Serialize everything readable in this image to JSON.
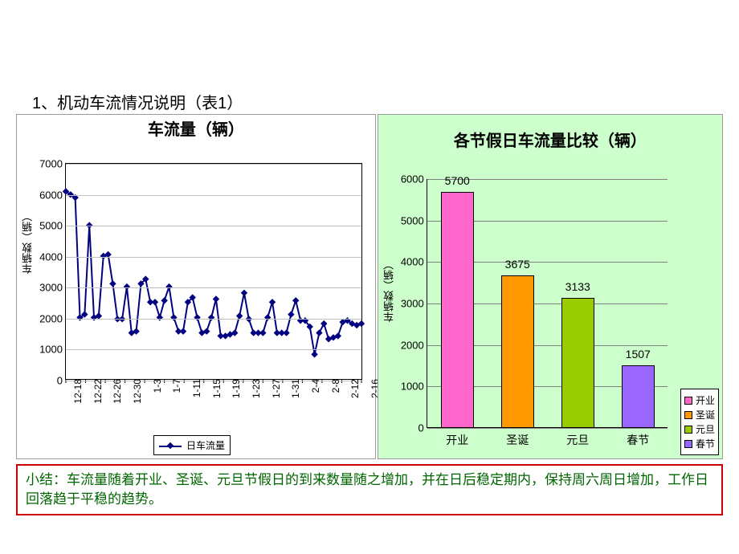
{
  "page": {
    "title": "1、机动车流情况说明（表1）"
  },
  "line_chart": {
    "type": "line",
    "title": "车流量（辆）",
    "y_label": "车辆数（辆）",
    "legend_label": "日车流量",
    "background_color": "#ffffff",
    "grid_color": "#c0c0c0",
    "line_color": "#000080",
    "marker_color": "#000080",
    "marker_shape": "diamond",
    "line_width": 2,
    "marker_size": 6,
    "title_fontsize": 20,
    "label_fontsize": 13,
    "ylim": [
      0,
      7000
    ],
    "ytick_step": 1000,
    "y_ticks": [
      0,
      1000,
      2000,
      3000,
      4000,
      5000,
      6000,
      7000
    ],
    "x_labels": [
      "12-18",
      "12-22",
      "12-26",
      "12-30",
      "1-3",
      "1-7",
      "1-11",
      "1-15",
      "1-19",
      "1-23",
      "1-27",
      "1-31",
      "2-4",
      "2-8",
      "2-12",
      "2-16"
    ],
    "values": [
      6100,
      6000,
      5900,
      2000,
      2100,
      5000,
      2000,
      2050,
      4000,
      4050,
      3100,
      1950,
      1950,
      3000,
      1500,
      1550,
      3100,
      3250,
      2500,
      2500,
      2000,
      2550,
      3000,
      2000,
      1550,
      1550,
      2500,
      2650,
      2000,
      1500,
      1550,
      2000,
      2600,
      1400,
      1400,
      1450,
      1500,
      2050,
      2800,
      1950,
      1500,
      1500,
      1500,
      2000,
      2500,
      1500,
      1500,
      1500,
      2100,
      2550,
      1900,
      1900,
      1700,
      800,
      1500,
      1800,
      1300,
      1350,
      1400,
      1850,
      1900,
      1800,
      1750,
      1800
    ]
  },
  "bar_chart": {
    "type": "bar",
    "title": "各节假日车流量比较（辆）",
    "y_label": "车辆数（辆）",
    "background_color": "#ccffcc",
    "plot_background_color": "#ccffcc",
    "grid_color": "#808080",
    "title_fontsize": 20,
    "label_fontsize": 13,
    "ylim": [
      0,
      6000
    ],
    "ytick_step": 1000,
    "y_ticks": [
      0,
      1000,
      2000,
      3000,
      4000,
      5000,
      6000
    ],
    "bar_width": 0.55,
    "categories": [
      "开业",
      "圣诞",
      "元旦",
      "春节"
    ],
    "values": [
      5700,
      3675,
      3133,
      1507
    ],
    "bar_colors": [
      "#ff66cc",
      "#ff9900",
      "#99cc00",
      "#9966ff"
    ],
    "legend_labels": [
      "开业",
      "圣诞",
      "元旦",
      "春节"
    ]
  },
  "summary": {
    "label": "小结：",
    "text": "车流量随着开业、圣诞、元旦节假日的到来数量随之增加，并在日后稳定期内，保持周六周日增加，工作日回落趋于平稳的趋势。"
  }
}
